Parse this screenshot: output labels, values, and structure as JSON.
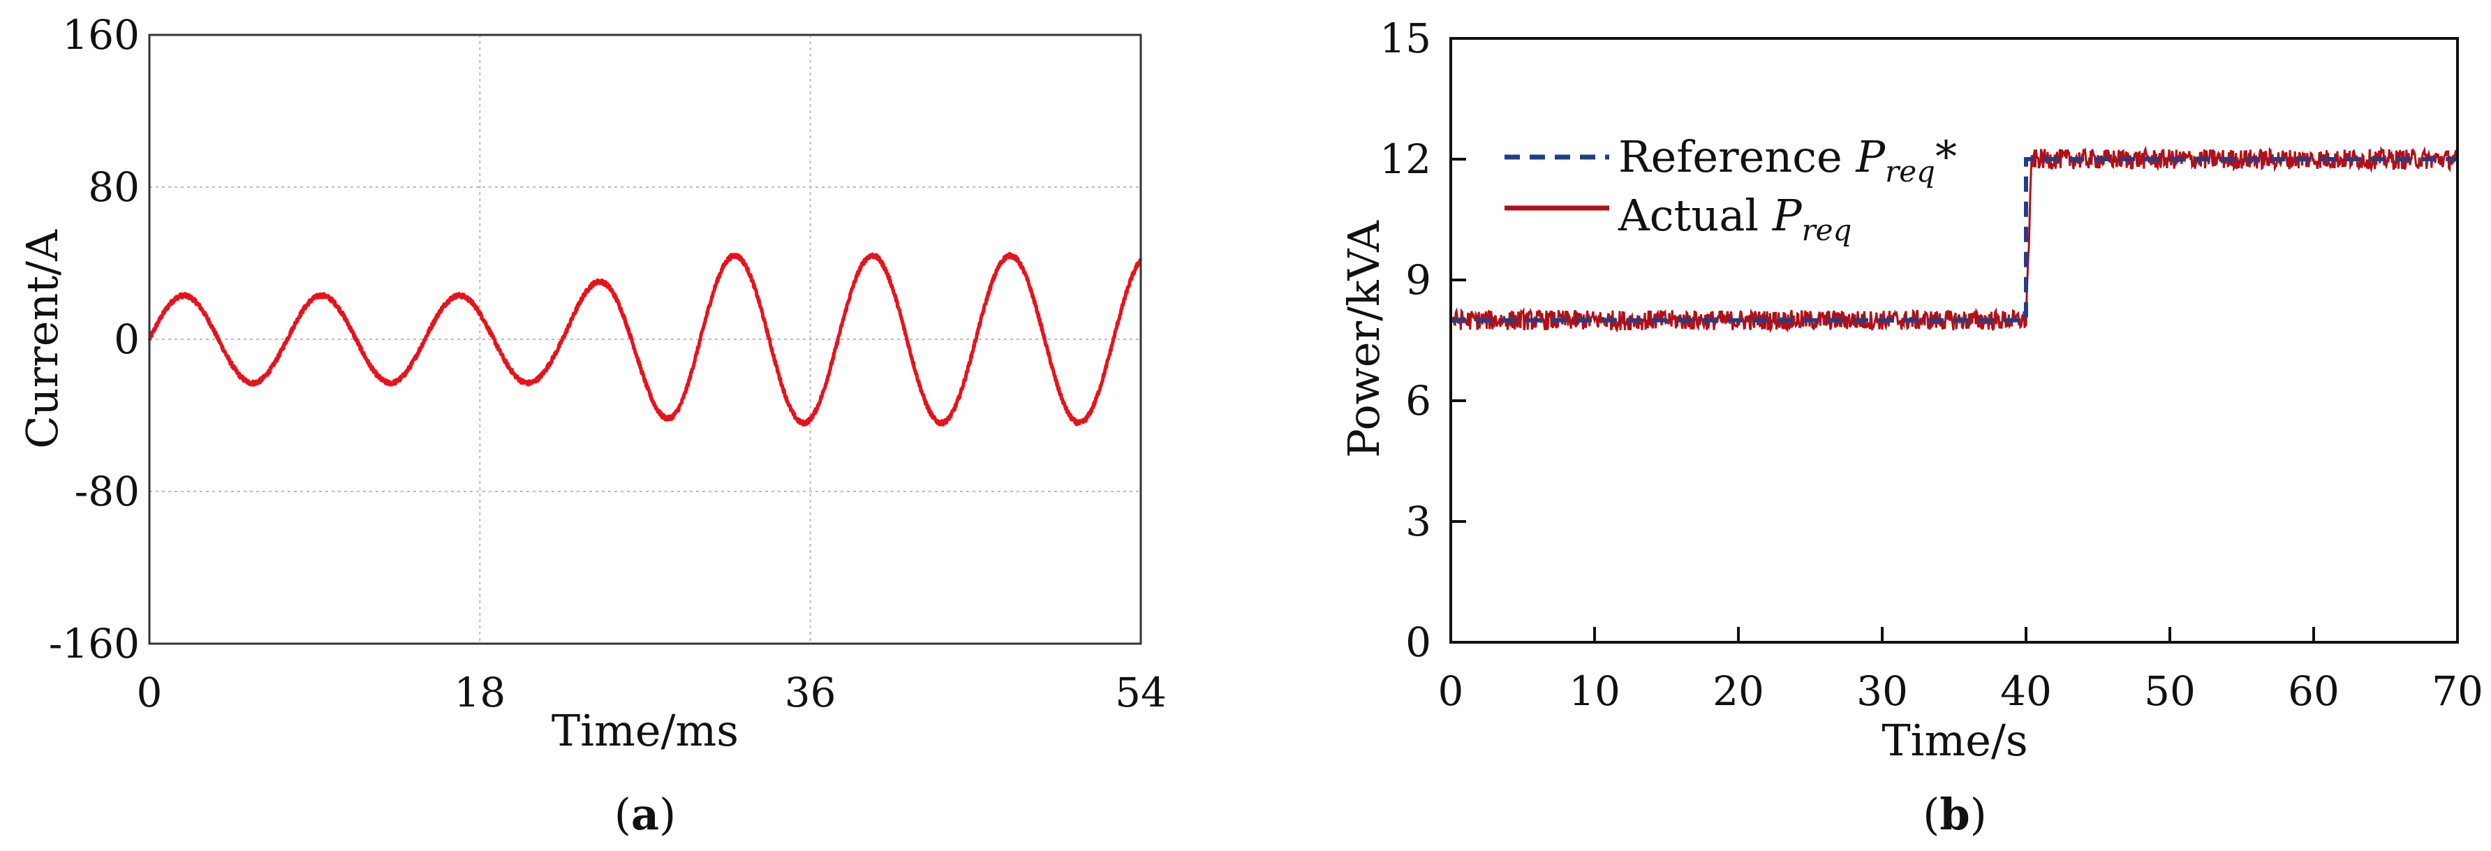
{
  "chart_data": [
    {
      "panel": "a",
      "type": "line",
      "subcaption": {
        "open": "(",
        "letter": "a",
        "close": ")"
      },
      "xlabel": "Time/ms",
      "ylabel": "Current/A",
      "xlim": [
        0,
        54
      ],
      "ylim": [
        -160,
        160
      ],
      "xticks": [
        0,
        18,
        36,
        54
      ],
      "yticks": [
        -160,
        -80,
        0,
        80,
        160
      ],
      "xtick_labels": [
        "0",
        "18",
        "36",
        "54"
      ],
      "ytick_labels": [
        "-160",
        "-80",
        "0",
        "80",
        "160"
      ],
      "grid": true,
      "series": [
        {
          "name": "current",
          "color": "#e8121b",
          "frequency_hz": 133.3,
          "segments": [
            {
              "t_start": 0,
              "t_end": 22,
              "amplitude": 23
            },
            {
              "t_start": 22,
              "t_end": 29,
              "amplitude_from": 23,
              "amplitude_to": 44
            },
            {
              "t_start": 29,
              "t_end": 54,
              "amplitude": 44
            }
          ]
        }
      ]
    },
    {
      "panel": "b",
      "type": "line",
      "subcaption": {
        "open": "(",
        "letter": "b",
        "close": ")"
      },
      "xlabel": "Time/s",
      "ylabel": "Power/kVA",
      "xlim": [
        0,
        70
      ],
      "ylim": [
        0,
        15
      ],
      "xticks": [
        0,
        10,
        20,
        30,
        40,
        50,
        60,
        70
      ],
      "yticks": [
        0,
        3,
        6,
        9,
        12,
        15
      ],
      "xtick_labels": [
        "0",
        "10",
        "20",
        "30",
        "40",
        "50",
        "60",
        "70"
      ],
      "ytick_labels": [
        "0",
        "3",
        "6",
        "9",
        "12",
        "15"
      ],
      "grid": false,
      "legend_position": "top-left",
      "series": [
        {
          "name": "Reference",
          "label_text": "Reference ",
          "label_symbol": "P",
          "label_sub": "req",
          "label_suffix": "*",
          "style": "dashed",
          "color": "#1f3f86",
          "x": [
            0,
            40,
            40,
            70
          ],
          "y": [
            8,
            8,
            12,
            12
          ]
        },
        {
          "name": "Actual",
          "label_text": "Actual ",
          "label_symbol": "P",
          "label_sub": "req",
          "label_suffix": "",
          "style": "solid",
          "color": "#b0101a",
          "x": [
            0,
            40,
            40.4,
            70
          ],
          "y": [
            8,
            8,
            12,
            12
          ],
          "noise_kva": 0.25
        }
      ]
    }
  ]
}
